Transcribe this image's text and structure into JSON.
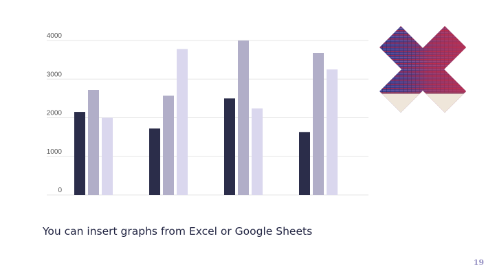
{
  "slide": {
    "caption": "You can insert graphs from Excel or Google Sheets",
    "page_number": "19"
  },
  "decoration": {
    "icon": "x-mark-icon",
    "colors": {
      "blue": "#3a3d8c",
      "red": "#b32a4a",
      "cream": "#efe6da"
    }
  },
  "colors": {
    "series": [
      "#2b2d4a",
      "#b1aec8",
      "#dad7ee"
    ],
    "grid": "#e6e6e6",
    "axis_text": "#555555"
  },
  "chart_data": {
    "type": "bar",
    "categories": [
      "",
      "",
      "",
      ""
    ],
    "series": [
      {
        "values": [
          2150,
          1720,
          2500,
          1630
        ]
      },
      {
        "values": [
          2720,
          2570,
          4000,
          3680
        ]
      },
      {
        "values": [
          2000,
          3780,
          2240,
          3250
        ]
      }
    ],
    "ylim": [
      0,
      4000
    ],
    "yticks": [
      "0",
      "1000",
      "2000",
      "3000",
      "4000"
    ],
    "xlabel": "",
    "ylabel": "",
    "grid": true,
    "legend": "none"
  }
}
